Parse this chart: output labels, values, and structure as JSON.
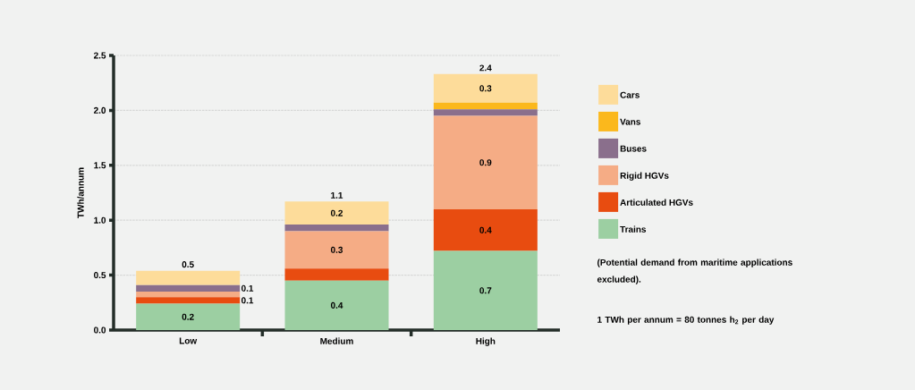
{
  "chart_data": {
    "type": "bar",
    "stacked": true,
    "ylabel": "TWh/annum",
    "categories": [
      "Low",
      "Medium",
      "High"
    ],
    "series": [
      {
        "name": "Trains",
        "color": "#9ccfa2",
        "values": [
          0.24,
          0.45,
          0.72
        ],
        "value_labels": [
          "0.2",
          "0.4",
          "0.7"
        ]
      },
      {
        "name": "Articulated HGVs",
        "color": "#e84c10",
        "values": [
          0.06,
          0.11,
          0.38
        ],
        "value_labels": [
          "0.1",
          null,
          "0.4"
        ]
      },
      {
        "name": "Rigid HGVs",
        "color": "#f5ac85",
        "values": [
          0.05,
          0.34,
          0.85
        ],
        "value_labels": [
          null,
          "0.3",
          "0.9"
        ]
      },
      {
        "name": "Buses",
        "color": "#8a6f8c",
        "values": [
          0.06,
          0.06,
          0.06
        ],
        "value_labels": [
          "0.1",
          null,
          null
        ]
      },
      {
        "name": "Vans",
        "color": "#fbb81c",
        "values": [
          0,
          0,
          0.06
        ],
        "value_labels": [
          null,
          null,
          null
        ]
      },
      {
        "name": "Cars",
        "color": "#fddc9a",
        "values": [
          0.13,
          0.21,
          0.26
        ],
        "value_labels": [
          null,
          "0.2",
          "0.3"
        ]
      }
    ],
    "totals": [
      "0.5",
      "1.1",
      "2.4"
    ],
    "ylim": [
      0,
      2.5
    ],
    "yticks": [
      {
        "value": 0,
        "label": "0.0"
      },
      0.5,
      {
        "value": 1,
        "label": "1.0"
      },
      1.5,
      {
        "value": 2,
        "label": "2.0"
      },
      2.5
    ],
    "grid": "y",
    "legend": "right",
    "annotations": [
      "(Potential demand from maritime applications excluded).",
      "1 TWh per annum = 80 tonnes h$_{2}$ per day"
    ]
  }
}
